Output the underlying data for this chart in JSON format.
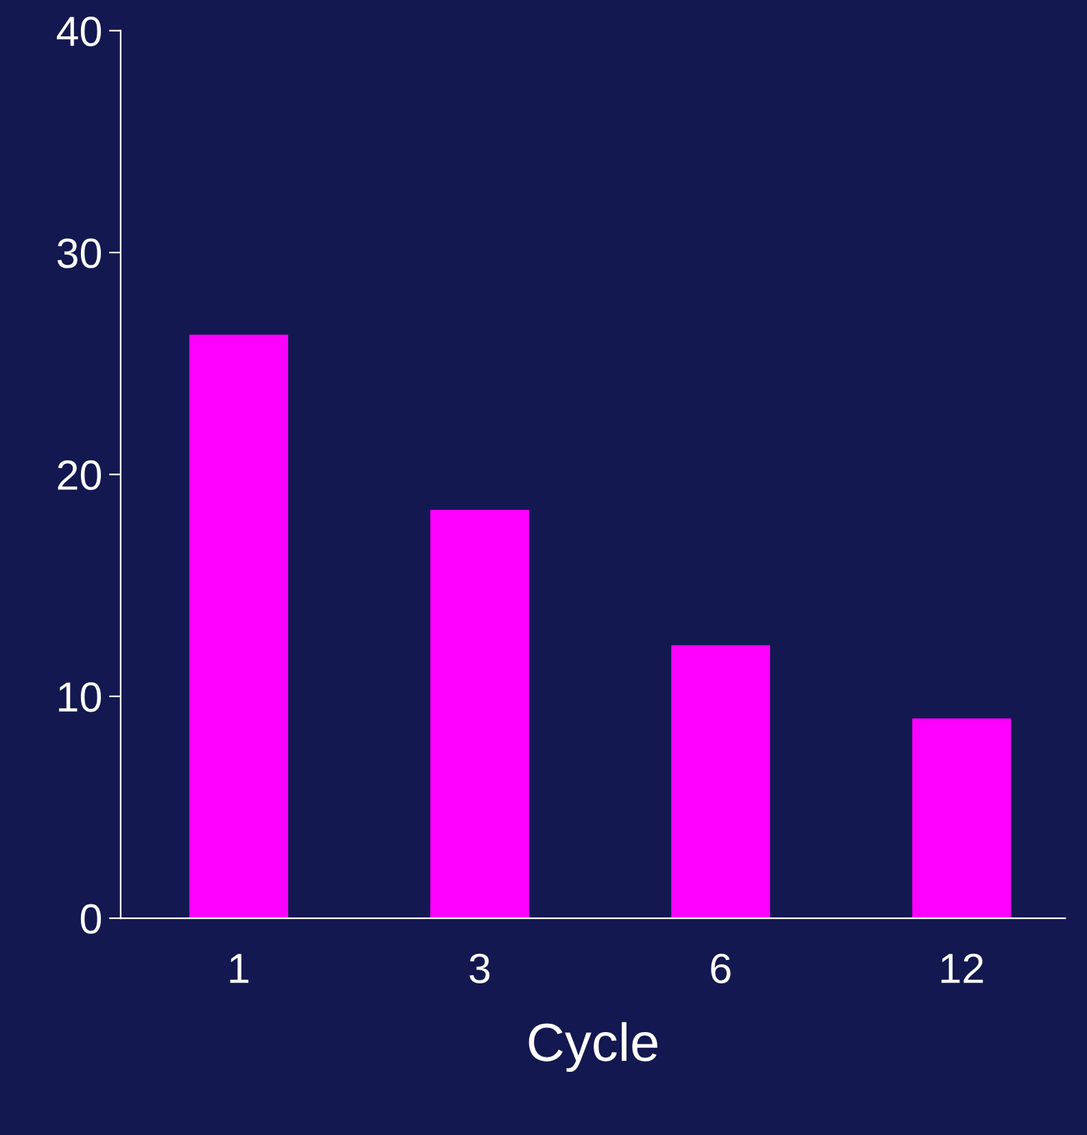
{
  "chart_data": {
    "type": "bar",
    "xlabel": "Cycle",
    "categories": [
      "1",
      "3",
      "6",
      "12"
    ],
    "values": [
      26.3,
      18.4,
      12.3,
      9.0
    ],
    "color": "#ff00ff",
    "ylim": [
      0,
      40
    ],
    "yticks": [
      0,
      10,
      20,
      30,
      40
    ],
    "grid": false,
    "legend": false
  }
}
